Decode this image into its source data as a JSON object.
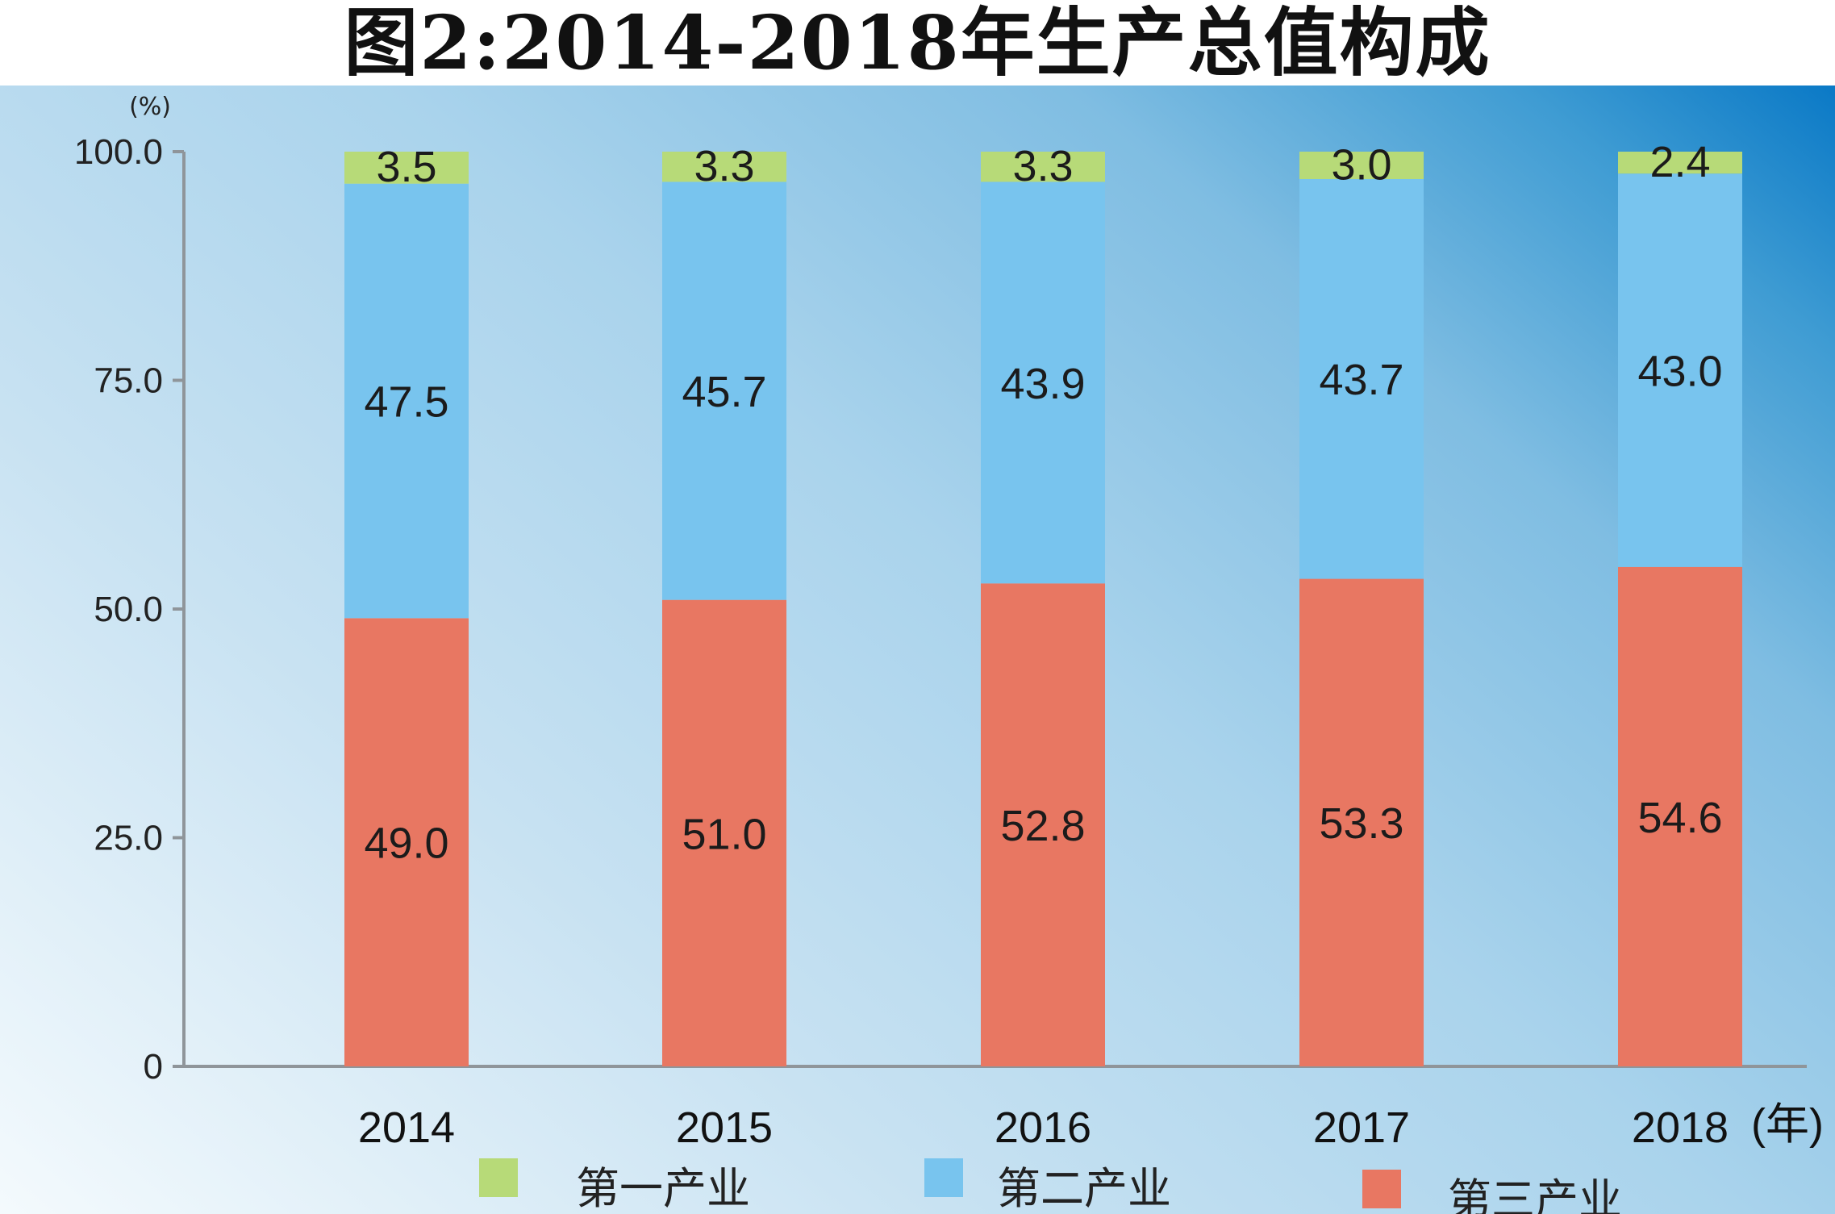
{
  "title": "图2:2014-2018年生产总值构成",
  "chart_data": {
    "type": "bar",
    "stacked": true,
    "title": "图2:2014-2018年生产总值构成",
    "y_unit": "(%)",
    "x_unit": "(年)",
    "categories": [
      "2014",
      "2015",
      "2016",
      "2017",
      "2018"
    ],
    "series": [
      {
        "name": "第三产业",
        "color": "#e87762",
        "values": [
          49.0,
          51.0,
          52.8,
          53.3,
          54.6
        ],
        "labels": [
          "49.0",
          "51.0",
          "52.8",
          "53.3",
          "54.6"
        ]
      },
      {
        "name": "第二产业",
        "color": "#78c4ee",
        "values": [
          47.5,
          45.7,
          43.9,
          43.7,
          43.0
        ],
        "labels": [
          "47.5",
          "45.7",
          "43.9",
          "43.7",
          "43.0"
        ]
      },
      {
        "name": "第一产业",
        "color": "#b7da78",
        "values": [
          3.5,
          3.3,
          3.3,
          3.0,
          2.4
        ],
        "labels": [
          "3.5",
          "3.3",
          "3.3",
          "3.0",
          "2.4"
        ]
      }
    ],
    "legend_order": [
      "第一产业",
      "第二产业",
      "第三产业"
    ],
    "yticks": [
      {
        "value": 0,
        "label": "0"
      },
      {
        "value": 25,
        "label": "25.0"
      },
      {
        "value": 50,
        "label": "50.0"
      },
      {
        "value": 75,
        "label": "75.0"
      },
      {
        "value": 100,
        "label": "100.0"
      }
    ],
    "ylim": [
      0,
      100
    ],
    "grid": false,
    "legend_position": "bottom"
  }
}
